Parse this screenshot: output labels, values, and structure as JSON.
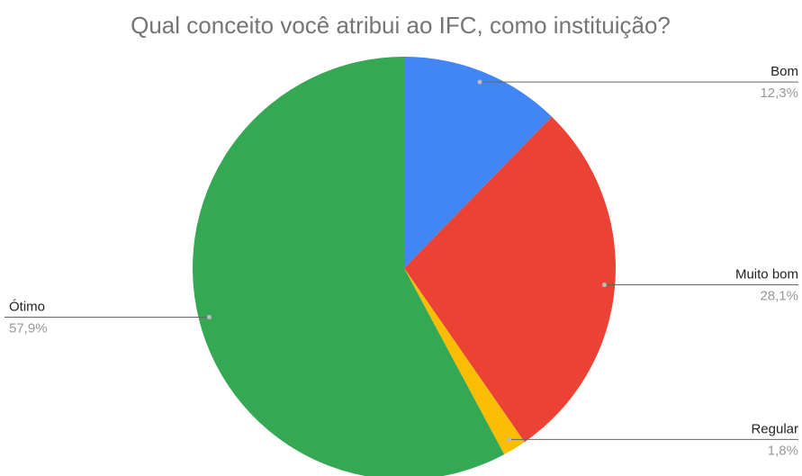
{
  "chart_data": {
    "type": "pie",
    "title": "Qual conceito você atribui ao IFC, como instituição?",
    "categories": [
      "Bom",
      "Muito bom",
      "Regular",
      "Ótimo"
    ],
    "values": [
      12.3,
      28.1,
      1.8,
      57.9
    ],
    "value_labels": [
      "12,3%",
      "28,1%",
      "1,8%",
      "57,9%"
    ],
    "colors": [
      "#4285f4",
      "#ea4335",
      "#fbbc04",
      "#34a853"
    ]
  }
}
